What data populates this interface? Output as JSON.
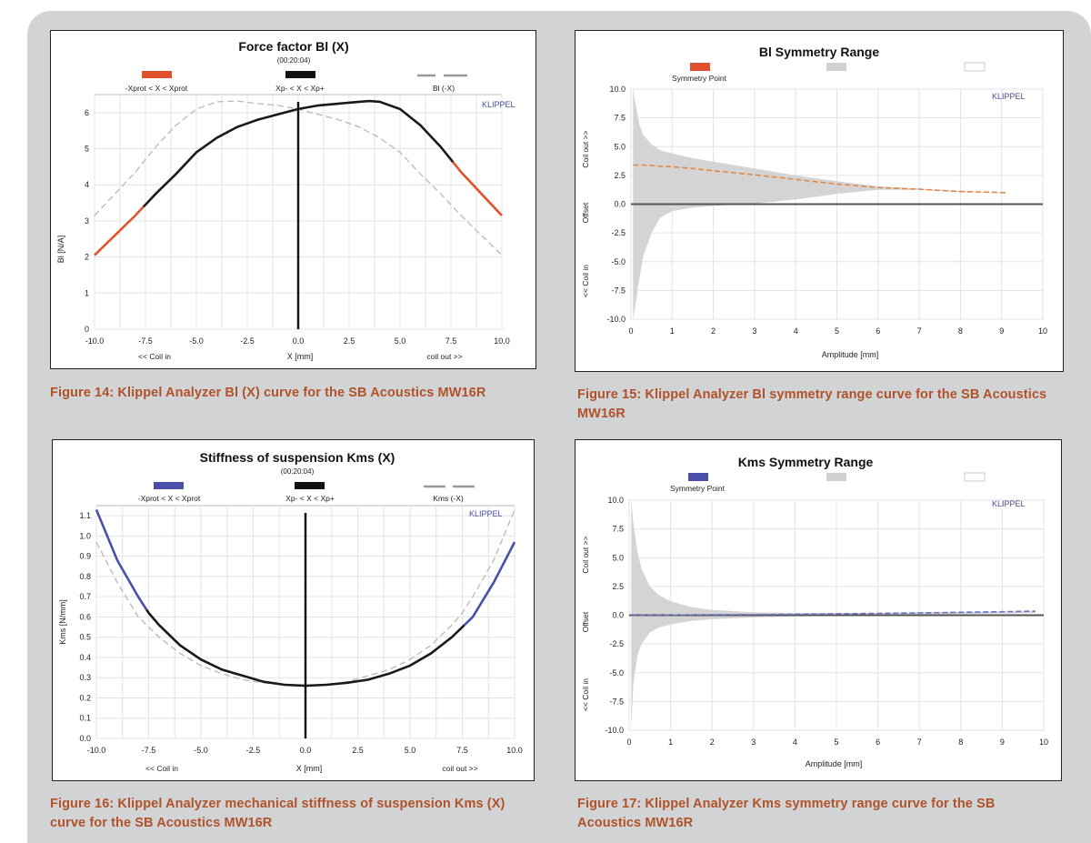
{
  "colors": {
    "caption": "#b0522a",
    "background": "#d2d3d5",
    "red_curve": "#e0522c",
    "blue_curve": "#4a4fa8",
    "black_curve": "#1a1a1a",
    "dashed": "#b8b8b8",
    "band": "#d4d4d4",
    "watermark": "#4a4f9a"
  },
  "charts": [
    {
      "title": "Force factor Bl (X)",
      "subtitle": "(00:20:04)",
      "watermark": "KLIPPEL",
      "legend": [
        "-Xprot < X < Xprot",
        "Xp- < X < Xp+",
        "Bl (-X)"
      ],
      "ylabel": "Bl [N/A]",
      "xlabel": "X [mm]",
      "xlabel_left": "<< Coil in",
      "xlabel_right": "coil out >>",
      "xticks": [
        "-10.0",
        "-7.5",
        "-5.0",
        "-2.5",
        "0.0",
        "2.5",
        "5.0",
        "7.5",
        "10.0"
      ],
      "yticks": [
        "0",
        "1",
        "2",
        "3",
        "4",
        "5",
        "6"
      ],
      "caption": "Figure 14: Klippel Analyzer Bl (X) curve for the SB Acoustics MW16R"
    },
    {
      "title": "Bl Symmetry Range",
      "watermark": "KLIPPEL",
      "legend": [
        "Symmetry Point",
        "",
        ""
      ],
      "ylabel_top": "Coil out >>",
      "ylabel_mid": "Offset",
      "ylabel_bottom": "<< Coil in",
      "xlabel": "Amplitude [mm]",
      "xticks": [
        "0",
        "1",
        "2",
        "3",
        "4",
        "5",
        "6",
        "7",
        "8",
        "9",
        "10"
      ],
      "yticks": [
        "10.0",
        "7.5",
        "5.0",
        "2.5",
        "0.0",
        "-2.5",
        "-5.0",
        "-7.5",
        "-10.0"
      ],
      "caption": "Figure 15: Klippel Analyzer Bl symmetry range curve for the SB Acoustics MW16R"
    },
    {
      "title": "Stiffness of suspension Kms (X)",
      "subtitle": "(00:20:04)",
      "watermark": "KLIPPEL",
      "legend": [
        "-Xprot < X < Xprot",
        "Xp- < X < Xp+",
        "Kms (-X)"
      ],
      "ylabel": "Kms [N/mm]",
      "xlabel": "X [mm]",
      "xlabel_left": "<< Coil in",
      "xlabel_right": "coil out >>",
      "xticks": [
        "-10.0",
        "-7.5",
        "-5.0",
        "-2.5",
        "0.0",
        "2.5",
        "5.0",
        "7.5",
        "10.0"
      ],
      "yticks": [
        "0.0",
        "0.1",
        "0.2",
        "0.3",
        "0.4",
        "0.5",
        "0.6",
        "0.7",
        "0.8",
        "0.9",
        "1.0",
        "1.1"
      ],
      "caption": "Figure 16: Klippel Analyzer mechanical stiffness of suspension Kms (X) curve for the SB Acoustics MW16R"
    },
    {
      "title": "Kms Symmetry Range",
      "watermark": "KLIPPEL",
      "legend": [
        "Symmetry Point",
        "",
        ""
      ],
      "ylabel_top": "Coil out >>",
      "ylabel_mid": "Offset",
      "ylabel_bottom": "<< Coil in",
      "xlabel": "Amplitude [mm]",
      "xticks": [
        "0",
        "1",
        "2",
        "3",
        "4",
        "5",
        "6",
        "7",
        "8",
        "9",
        "10"
      ],
      "yticks": [
        "10.0",
        "7.5",
        "5.0",
        "2.5",
        "0.0",
        "-2.5",
        "-5.0",
        "-7.5",
        "-10.0"
      ],
      "caption": "Figure 17: Klippel Analyzer Kms symmetry range curve for the  SB Acoustics MW16R"
    }
  ],
  "chart_data": [
    {
      "type": "line",
      "title": "Force factor Bl (X)",
      "xlabel": "X [mm]",
      "ylabel": "Bl [N/A]",
      "xlim": [
        -10,
        10
      ],
      "ylim": [
        0,
        6.5
      ],
      "grid": true,
      "legend_position": "top",
      "x": [
        -10,
        -9,
        -8,
        -7.5,
        -7,
        -6,
        -5,
        -4,
        -3,
        -2,
        -1,
        0,
        1,
        2,
        3,
        3.5,
        4,
        5,
        6,
        7,
        7.5,
        8,
        9,
        10
      ],
      "series": [
        {
          "name": "Xp- < X < Xp+",
          "values": [
            2.05,
            2.6,
            3.15,
            3.45,
            3.75,
            4.3,
            4.9,
            5.3,
            5.6,
            5.8,
            5.95,
            6.1,
            6.2,
            6.25,
            6.3,
            6.32,
            6.3,
            6.1,
            5.65,
            5.05,
            4.7,
            4.35,
            3.75,
            3.15
          ]
        },
        {
          "name": "Bl (-X)",
          "values": [
            3.15,
            3.75,
            4.35,
            4.7,
            5.05,
            5.65,
            6.1,
            6.3,
            6.32,
            6.25,
            6.2,
            6.1,
            5.95,
            5.8,
            5.6,
            5.45,
            5.3,
            4.9,
            4.3,
            3.75,
            3.45,
            3.15,
            2.6,
            2.05
          ]
        }
      ],
      "xprot_range": [
        -7.6,
        7.6
      ],
      "rest_position_x": 0
    },
    {
      "type": "area",
      "title": "Bl Symmetry Range",
      "xlabel": "Amplitude [mm]",
      "xlim": [
        0,
        10
      ],
      "ylim": [
        -10,
        10
      ],
      "grid": true,
      "legend_position": "top-left",
      "x": [
        0.05,
        0.1,
        0.2,
        0.3,
        0.5,
        0.7,
        1,
        1.5,
        2,
        3,
        4,
        5,
        6,
        7,
        8,
        9.1
      ],
      "series": [
        {
          "name": "Symmetry Point",
          "values": [
            3.4,
            3.4,
            3.4,
            3.4,
            3.35,
            3.3,
            3.25,
            3.1,
            2.9,
            2.55,
            2.15,
            1.75,
            1.45,
            1.3,
            1.1,
            1.0
          ]
        },
        {
          "name": "band_upper",
          "values": [
            10.0,
            9.0,
            7.0,
            6.0,
            5.2,
            4.7,
            4.4,
            4.0,
            3.7,
            3.1,
            2.5,
            2.0,
            1.55,
            1.35,
            1.15,
            1.0
          ]
        },
        {
          "name": "band_lower",
          "values": [
            -10.0,
            -9.0,
            -6.5,
            -4.5,
            -2.5,
            -1.2,
            -0.6,
            -0.3,
            -0.15,
            0.05,
            0.4,
            0.9,
            1.25,
            1.25,
            1.05,
            1.0
          ]
        }
      ]
    },
    {
      "type": "line",
      "title": "Stiffness of suspension Kms (X)",
      "xlabel": "X [mm]",
      "ylabel": "Kms [N/mm]",
      "xlim": [
        -10,
        10
      ],
      "ylim": [
        0,
        1.15
      ],
      "grid": true,
      "legend_position": "top",
      "x": [
        -10,
        -9,
        -8,
        -7.5,
        -7,
        -6,
        -5,
        -4,
        -3,
        -2,
        -1,
        0,
        1,
        2,
        3,
        4,
        5,
        6,
        7,
        7.5,
        8,
        9,
        10
      ],
      "series": [
        {
          "name": "Xp- < X < Xp+",
          "values": [
            1.13,
            0.88,
            0.7,
            0.62,
            0.56,
            0.46,
            0.39,
            0.34,
            0.31,
            0.28,
            0.265,
            0.26,
            0.265,
            0.275,
            0.29,
            0.32,
            0.36,
            0.42,
            0.5,
            0.55,
            0.6,
            0.77,
            0.97
          ]
        },
        {
          "name": "Kms (-X)",
          "values": [
            0.97,
            0.77,
            0.6,
            0.55,
            0.5,
            0.42,
            0.36,
            0.32,
            0.29,
            0.275,
            0.265,
            0.26,
            0.265,
            0.28,
            0.31,
            0.34,
            0.39,
            0.46,
            0.56,
            0.62,
            0.7,
            0.88,
            1.13
          ]
        }
      ],
      "xprot_range": [
        -7.6,
        7.6
      ],
      "rest_position_x": 0
    },
    {
      "type": "area",
      "title": "Kms Symmetry Range",
      "xlabel": "Amplitude [mm]",
      "xlim": [
        0,
        10
      ],
      "ylim": [
        -10,
        10
      ],
      "grid": true,
      "legend_position": "top-left",
      "x": [
        0.05,
        0.1,
        0.2,
        0.3,
        0.5,
        0.7,
        1,
        1.5,
        2,
        3,
        4,
        5,
        6,
        7,
        8,
        9,
        9.8
      ],
      "series": [
        {
          "name": "Symmetry Point",
          "values": [
            0,
            0,
            0,
            0,
            0,
            0,
            0,
            0.02,
            0.03,
            0.05,
            0.08,
            0.12,
            0.16,
            0.2,
            0.25,
            0.3,
            0.35
          ]
        },
        {
          "name": "band_upper",
          "values": [
            10.0,
            8.0,
            5.5,
            4.0,
            2.5,
            1.8,
            1.2,
            0.7,
            0.45,
            0.25,
            0.2,
            0.2,
            0.22,
            0.25,
            0.28,
            0.32,
            0.35
          ]
        },
        {
          "name": "band_lower",
          "values": [
            -10.0,
            -6.0,
            -3.5,
            -2.5,
            -1.5,
            -1.1,
            -0.8,
            -0.5,
            -0.35,
            -0.2,
            -0.1,
            -0.05,
            0.0,
            0.05,
            0.1,
            0.15,
            0.2
          ]
        }
      ]
    }
  ]
}
